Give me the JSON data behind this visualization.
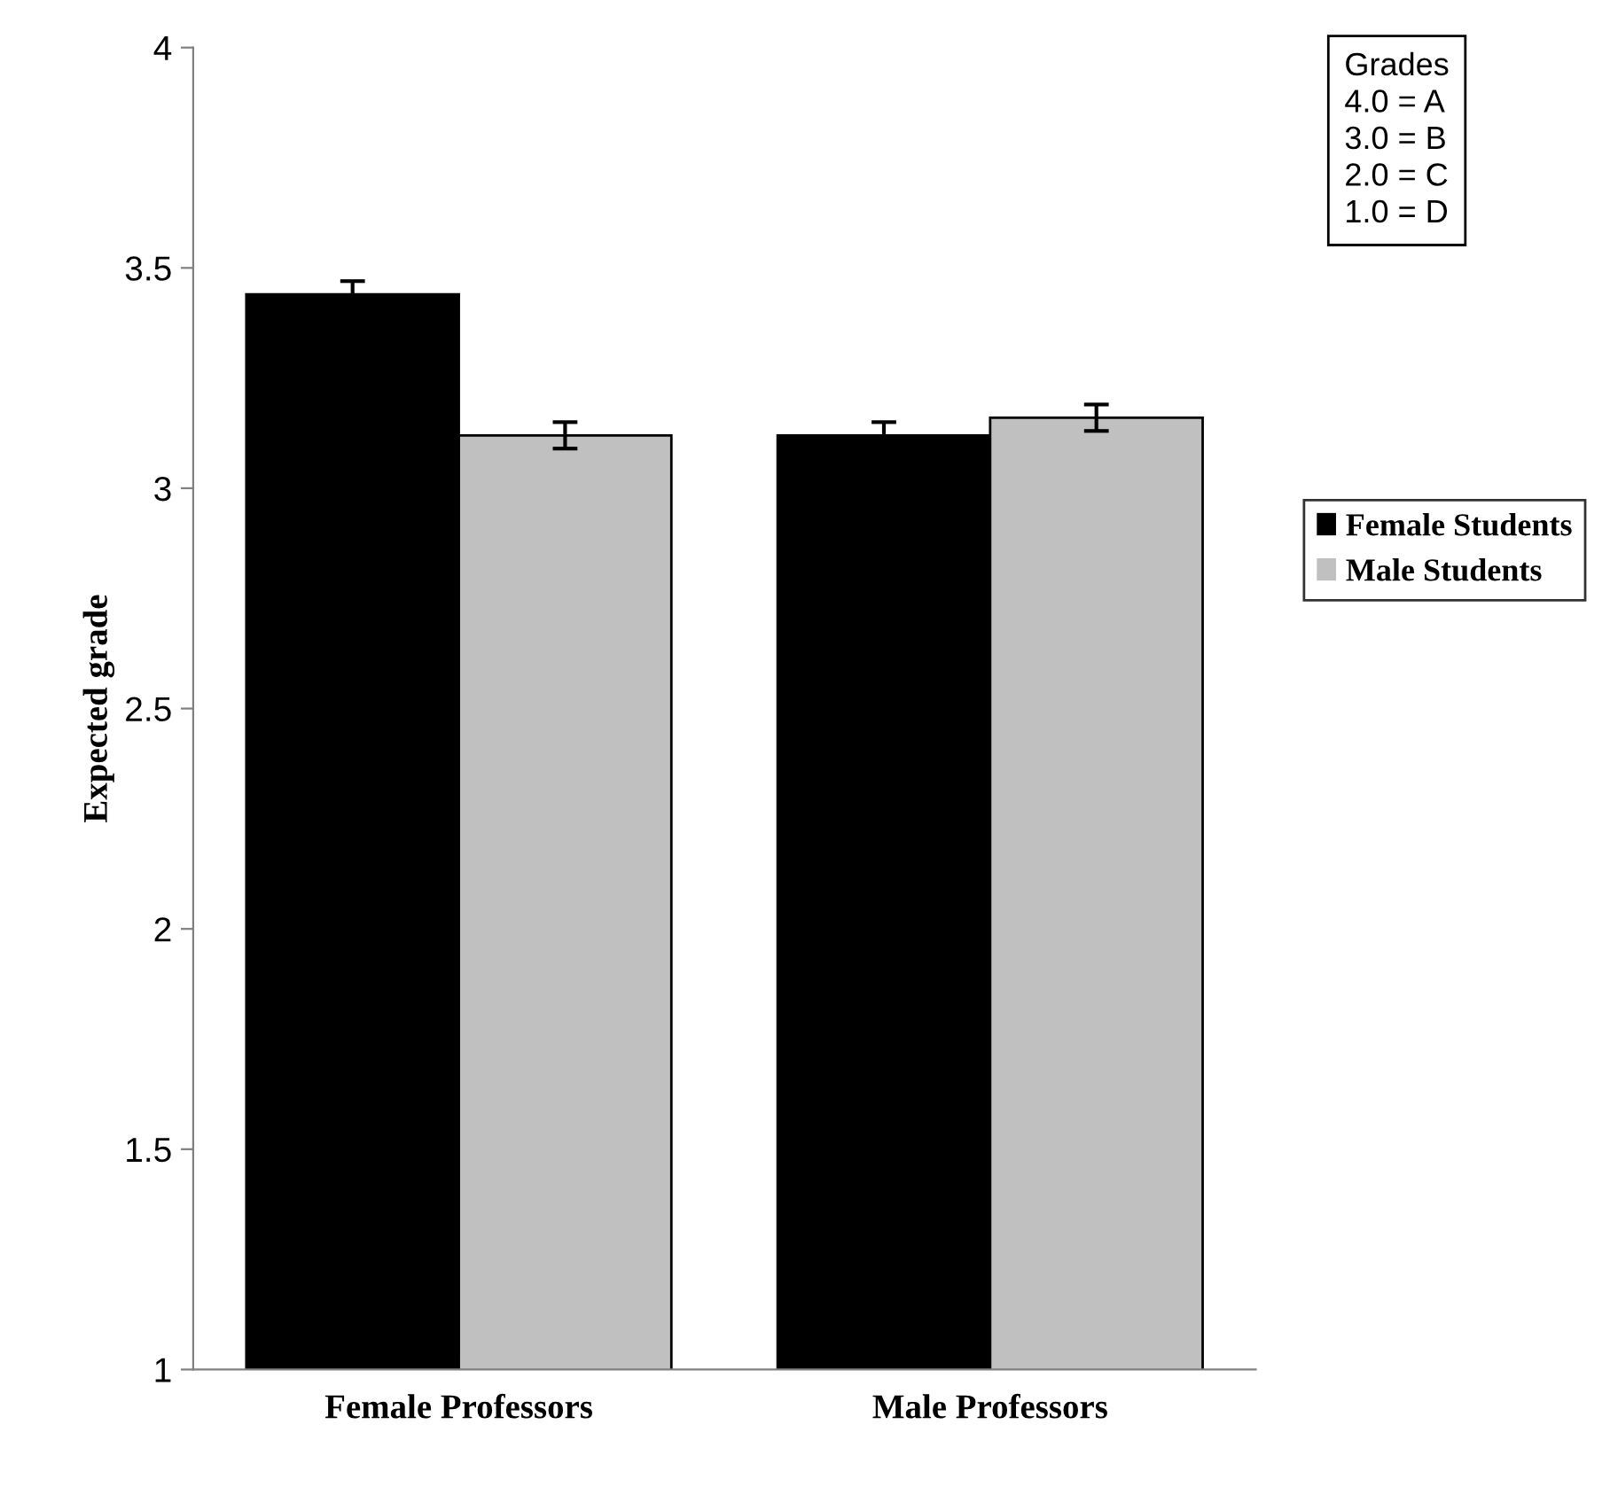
{
  "chart_data": {
    "type": "bar",
    "ylabel": "Expected grade",
    "categories": [
      "Female Professors",
      "Male Professors"
    ],
    "series": [
      {
        "name": "Female Students",
        "color": "#000000",
        "values": [
          3.44,
          3.12
        ],
        "errors": [
          0.03,
          0.03
        ]
      },
      {
        "name": "Male Students",
        "color": "#c0c0c0",
        "values": [
          3.12,
          3.16
        ],
        "errors": [
          0.03,
          0.03
        ]
      }
    ],
    "ylim": [
      1,
      4
    ],
    "yticks": [
      1,
      1.5,
      2,
      2.5,
      3,
      3.5,
      4
    ],
    "grid": false,
    "legend": "right",
    "annotations": [
      "Grades\n4.0 = A\n3.0 = B\n2.0 = C\n1.0 = D"
    ]
  }
}
